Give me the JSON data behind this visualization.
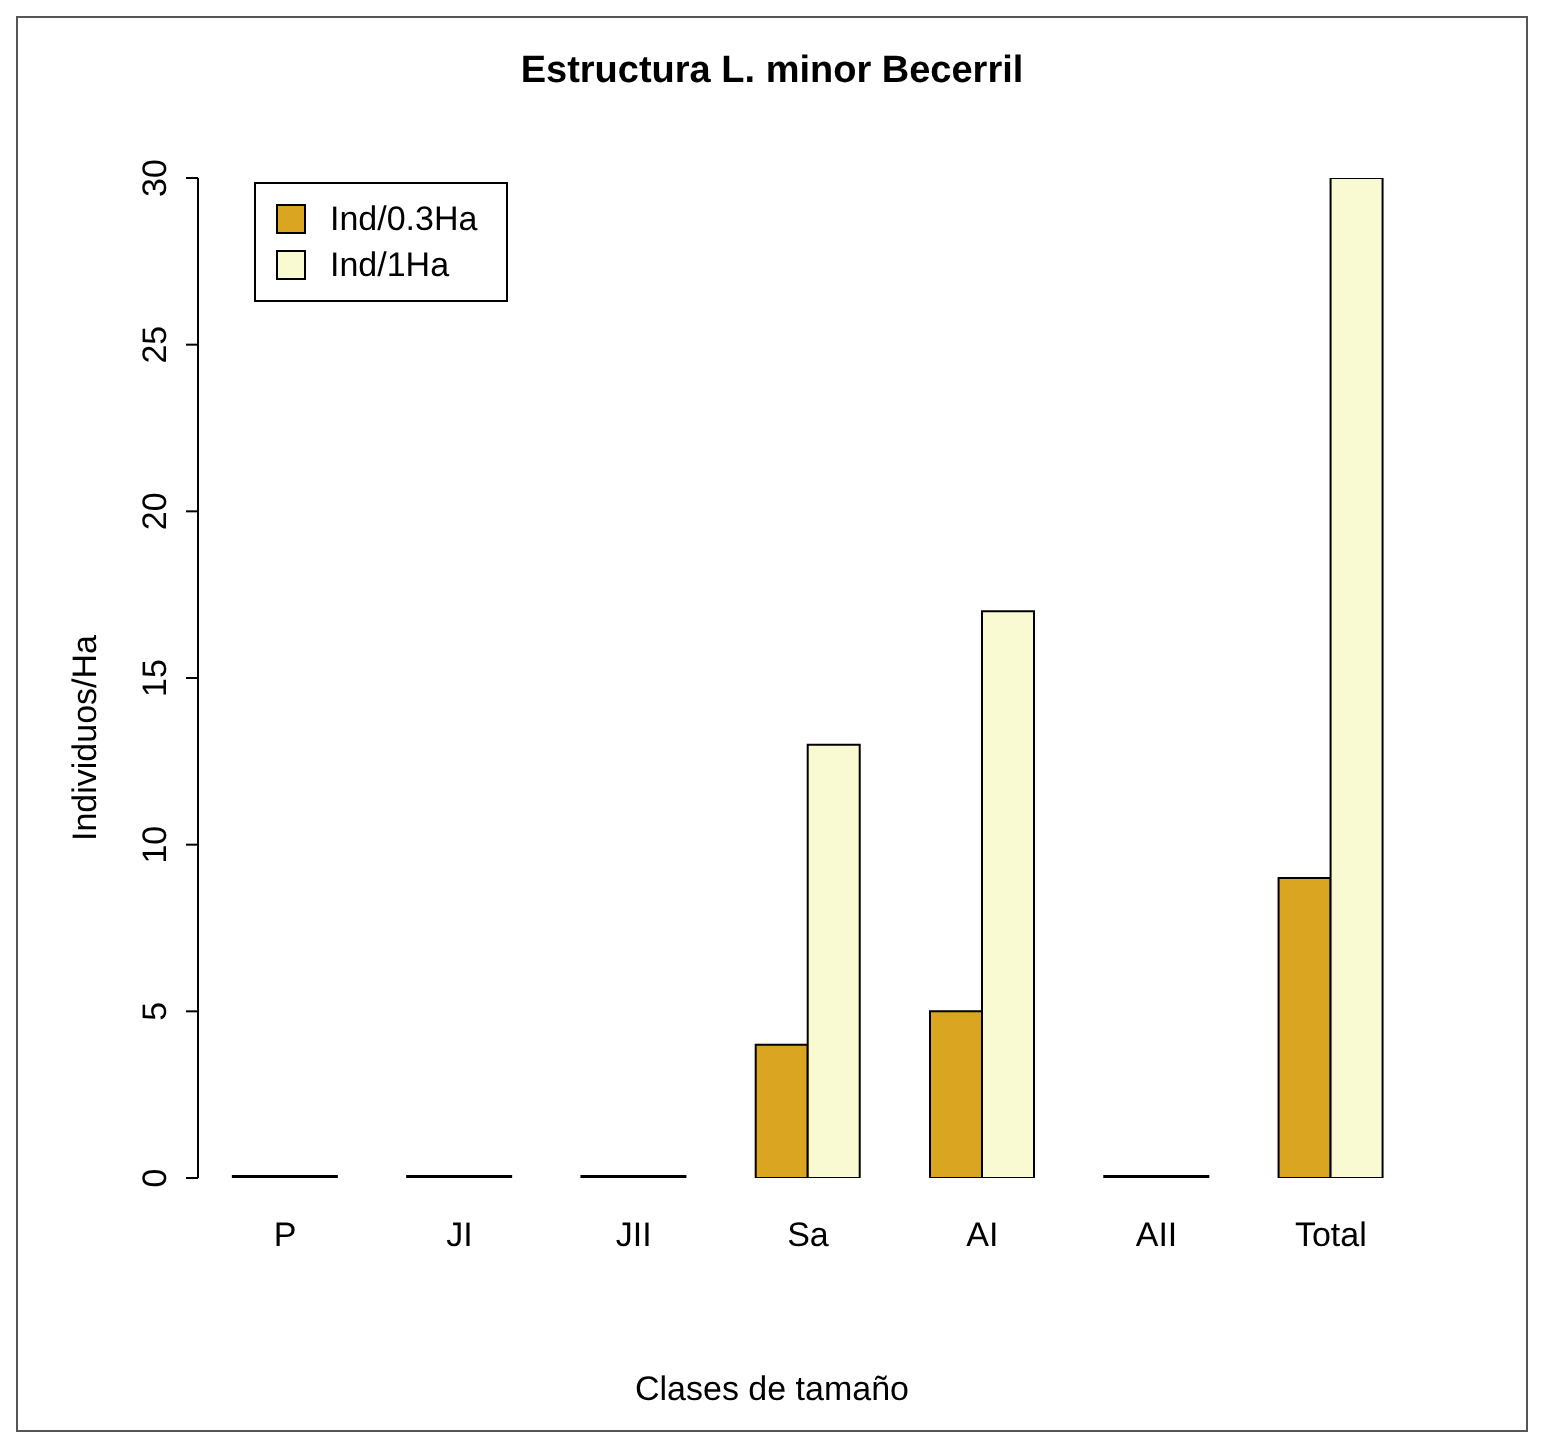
{
  "chart_data": {
    "type": "bar",
    "title": "Estructura L. minor Becerril",
    "xlabel": "Clases de tamaño",
    "ylabel": "Individuos/Ha",
    "categories": [
      "P",
      "JI",
      "JII",
      "Sa",
      "AI",
      "AII",
      "Total"
    ],
    "series": [
      {
        "name": "Ind/0.3Ha",
        "color": "#daa520",
        "values": [
          0,
          0,
          0,
          4,
          5,
          0,
          9
        ]
      },
      {
        "name": "Ind/1Ha",
        "color": "#fafad2",
        "values": [
          0,
          0,
          0,
          13,
          17,
          0,
          30
        ]
      }
    ],
    "ylim": [
      0,
      30
    ],
    "yticks": [
      0,
      5,
      10,
      15,
      20,
      25,
      30
    ],
    "grid": false,
    "legend": "top left"
  }
}
